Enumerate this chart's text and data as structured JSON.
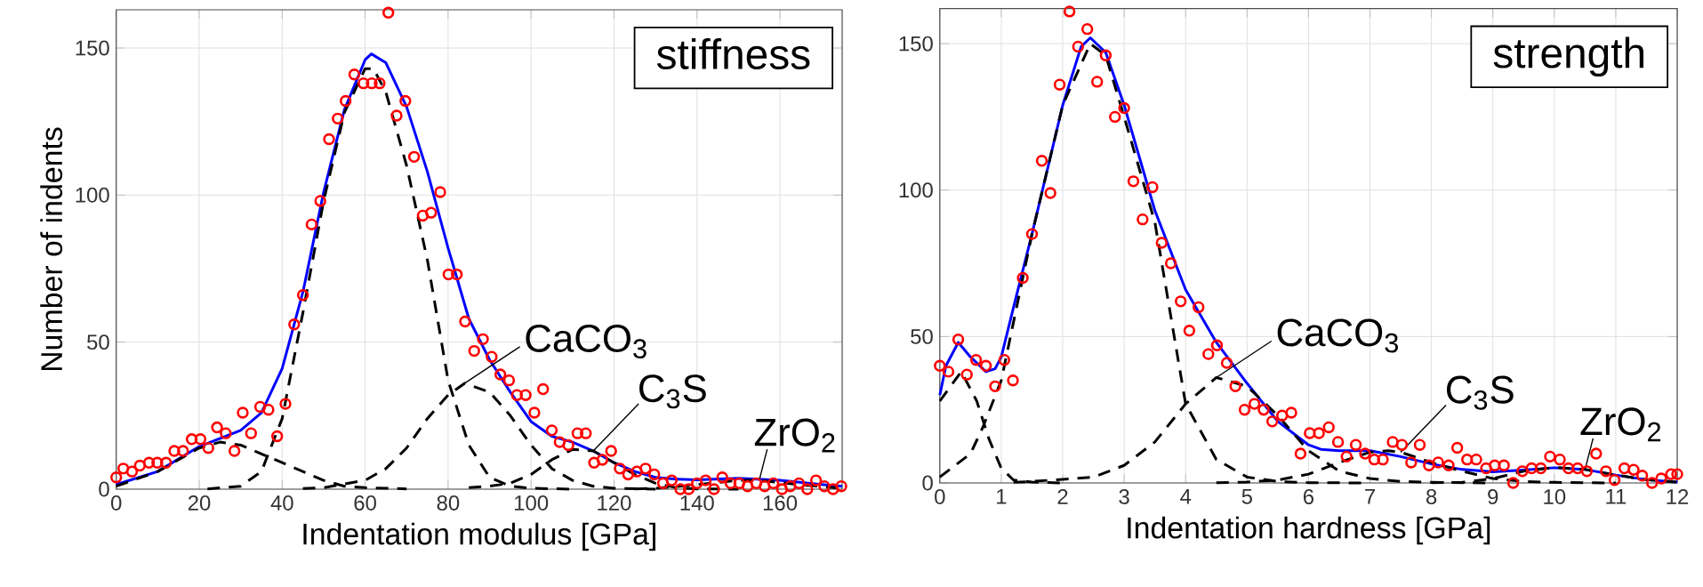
{
  "chart_data": [
    {
      "type": "scatter",
      "xlabel": "Indentation modulus [GPa]",
      "ylabel": "Number of indents",
      "xlim": [
        0,
        175
      ],
      "ylim": [
        0,
        163
      ],
      "xticks": [
        0,
        20,
        40,
        60,
        80,
        100,
        120,
        140,
        160
      ],
      "yticks": [
        0,
        50,
        100,
        150
      ],
      "grid": true,
      "annotations": [
        "stiffness",
        {
          "text": "CaCO$_{3}$",
          "x": 84,
          "y": 36
        },
        {
          "text": "C$_{3}$S",
          "x": 115,
          "y": 13
        },
        {
          "text": "ZrO$_{2}$",
          "x": 155,
          "y": 3
        }
      ],
      "series": [
        {
          "color": "#ff0000",
          "marker": "circle",
          "x": [
            0,
            1.7,
            3.8,
            5.7,
            7.9,
            9.9,
            12,
            14,
            16.1,
            18.2,
            20.3,
            22.2,
            24.3,
            26.4,
            28.5,
            30.5,
            32.5,
            34.7,
            36.7,
            38.8,
            40.8,
            42.9,
            45,
            47.1,
            49.2,
            51.3,
            53.4,
            55.3,
            57.4,
            59.6,
            61.6,
            63.5,
            65.6,
            67.6,
            69.7,
            71.8,
            73.9,
            75.9,
            78.1,
            80.1,
            82.1,
            84.1,
            86.3,
            88.4,
            90.5,
            92.6,
            94.7,
            96.6,
            98.7,
            100.8,
            102.9,
            105,
            106.9,
            109,
            111.2,
            113.2,
            115.2,
            117.2,
            119.3,
            121.4,
            123.4,
            125.5,
            127.6,
            129.7,
            131.8,
            133.9,
            136,
            138,
            140,
            142.1,
            144.1,
            146.1,
            148.1,
            150.2,
            152.2,
            154.3,
            156.3,
            158.4,
            160.5,
            162.5,
            164.6,
            166.6,
            168.7,
            170.7,
            172.8,
            174.8
          ],
          "values": [
            4,
            7,
            6,
            8,
            9,
            9,
            9,
            13,
            13,
            17,
            17,
            14,
            21,
            19,
            13,
            26,
            19,
            28,
            27,
            18,
            29,
            56,
            66,
            90,
            98,
            119,
            126,
            132,
            141,
            138,
            138,
            138,
            162,
            127,
            132,
            113,
            93,
            94,
            101,
            73,
            73,
            57,
            47,
            51,
            45,
            39,
            37,
            32,
            32,
            26,
            34,
            20,
            16,
            15,
            19,
            19,
            9,
            10,
            13,
            7,
            5,
            6,
            7,
            5,
            2,
            3,
            0,
            0,
            2,
            3,
            0,
            4,
            2,
            2,
            1,
            2,
            1,
            2,
            0,
            1,
            2,
            0,
            3,
            1,
            0,
            1
          ]
        },
        {
          "type": "line",
          "color": "#0000ff",
          "x": [
            0,
            10,
            20,
            30,
            35,
            40,
            45,
            50,
            55,
            60,
            61.5,
            65,
            70,
            75,
            80,
            85,
            90,
            95,
            100,
            105,
            110,
            115,
            120,
            125,
            130,
            135,
            140,
            150,
            160,
            170,
            175
          ],
          "values": [
            1.6,
            6,
            14.5,
            20,
            26,
            41,
            67,
            101,
            129,
            146,
            148,
            145,
            130,
            108,
            82,
            58,
            44,
            33,
            23,
            18,
            16,
            13,
            9,
            6,
            4,
            3.4,
            3.2,
            3.7,
            3,
            1.6,
            1
          ]
        },
        {
          "type": "line",
          "color": "#000000",
          "line_style": "dashed",
          "x": [
            0,
            10,
            20,
            25,
            30,
            40,
            50,
            55,
            60,
            70
          ],
          "values": [
            1,
            6,
            14,
            16,
            15,
            9,
            3,
            1,
            0.5,
            0.1
          ]
        },
        {
          "type": "line",
          "color": "#000000",
          "line_style": "dashed",
          "x": [
            22,
            30,
            35,
            40,
            45,
            50,
            55,
            60,
            62,
            65,
            70,
            75,
            80,
            85,
            90,
            95,
            100,
            110
          ],
          "values": [
            0.1,
            1,
            6,
            24,
            60,
            98,
            128,
            143,
            143,
            135,
            110,
            78,
            37,
            15,
            4,
            1,
            0.3,
            0
          ]
        },
        {
          "type": "line",
          "color": "#000000",
          "line_style": "dashed",
          "x": [
            45,
            50,
            60,
            65,
            70,
            75,
            80,
            84,
            90,
            95,
            100,
            105,
            110,
            115,
            120,
            130
          ],
          "values": [
            0.2,
            0.5,
            3,
            7,
            14,
            24,
            32,
            36,
            33,
            25,
            15,
            7,
            3,
            1,
            0.3,
            0
          ]
        },
        {
          "type": "line",
          "color": "#000000",
          "line_style": "dashed",
          "x": [
            85,
            90,
            95,
            100,
            105,
            110,
            115,
            120,
            125,
            130,
            135,
            140,
            150
          ],
          "values": [
            0.5,
            1,
            2,
            5,
            10,
            13.5,
            13,
            9,
            5,
            2,
            0.5,
            0.1,
            0
          ]
        },
        {
          "type": "line",
          "color": "#000000",
          "line_style": "dashed",
          "x": [
            125,
            130,
            140,
            150,
            155,
            165,
            175
          ],
          "values": [
            0.1,
            0.3,
            1.5,
            3,
            3,
            1.5,
            0.3
          ]
        }
      ]
    },
    {
      "type": "scatter",
      "xlabel": "Indentation hardness [GPa]",
      "xlim": [
        0,
        12
      ],
      "ylim": [
        0,
        162
      ],
      "xticks": [
        0,
        1,
        2,
        3,
        4,
        5,
        6,
        7,
        8,
        9,
        10,
        11,
        12
      ],
      "yticks": [
        0,
        50,
        100,
        150
      ],
      "grid": true,
      "annotations": [
        "strength",
        {
          "text": "CaCO$_{3}$",
          "x": 4.5,
          "y": 36
        },
        {
          "text": "C$_{3}$S",
          "x": 7.5,
          "y": 10.5
        },
        {
          "text": "ZrO$_{2}$",
          "x": 10.5,
          "y": 4.6
        }
      ],
      "series": [
        {
          "color": "#ff0000",
          "marker": "circle",
          "x": [
            0,
            0.14,
            0.3,
            0.44,
            0.59,
            0.75,
            0.9,
            1.05,
            1.19,
            1.35,
            1.5,
            1.66,
            1.8,
            1.95,
            2.11,
            2.25,
            2.4,
            2.56,
            2.7,
            2.85,
            3,
            3.15,
            3.3,
            3.46,
            3.61,
            3.76,
            3.92,
            4.06,
            4.21,
            4.37,
            4.51,
            4.67,
            4.81,
            4.96,
            5.12,
            5.27,
            5.41,
            5.57,
            5.72,
            5.87,
            6.02,
            6.17,
            6.33,
            6.48,
            6.62,
            6.77,
            6.92,
            7.07,
            7.21,
            7.37,
            7.52,
            7.67,
            7.81,
            7.96,
            8.11,
            8.28,
            8.42,
            8.58,
            8.73,
            8.89,
            9.03,
            9.18,
            9.33,
            9.48,
            9.63,
            9.78,
            9.93,
            10.09,
            10.23,
            10.38,
            10.53,
            10.68,
            10.84,
            10.98,
            11.14,
            11.29,
            11.43,
            11.59,
            11.74,
            11.9,
            12
          ],
          "values": [
            40,
            38,
            49,
            37,
            42,
            40,
            33,
            42,
            35,
            70,
            85,
            110,
            99,
            136,
            161,
            149,
            155,
            137,
            146,
            125,
            128,
            103,
            90,
            101,
            82,
            75,
            62,
            52,
            60,
            44,
            47,
            41,
            33,
            25,
            27,
            25,
            21,
            23,
            24,
            10,
            17,
            17,
            19,
            14,
            9,
            13,
            10,
            8,
            8,
            14,
            13,
            7,
            13,
            6,
            7,
            6,
            12,
            8,
            8,
            5,
            6,
            6,
            0,
            4,
            5,
            5,
            9,
            8,
            5,
            5,
            4,
            10,
            4,
            1,
            5,
            4.5,
            2.5,
            0,
            1.5,
            3,
            3
          ]
        },
        {
          "type": "line",
          "color": "#0000ff",
          "x": [
            0,
            0.1,
            0.3,
            0.5,
            0.75,
            0.9,
            1,
            1.2,
            1.5,
            2,
            2.3,
            2.45,
            2.7,
            3,
            3.5,
            4,
            4.5,
            5,
            5.5,
            6,
            6.2,
            6.5,
            7,
            7.5,
            8,
            8.5,
            9,
            9.5,
            10,
            10.5,
            11,
            11.5,
            12
          ],
          "values": [
            30,
            40,
            48,
            43,
            38,
            39,
            43,
            60,
            85,
            129,
            149,
            152,
            147,
            129,
            93,
            66,
            48,
            34,
            21,
            13,
            11.5,
            11,
            11,
            9,
            6.5,
            4.6,
            3.8,
            4.4,
            5.2,
            4.6,
            2.7,
            1.1,
            0.3
          ]
        },
        {
          "type": "line",
          "color": "#000000",
          "line_style": "dashed",
          "x": [
            0,
            0.35,
            0.6,
            0.8,
            1,
            1.2,
            1.5,
            2
          ],
          "values": [
            28,
            38,
            28,
            15,
            5,
            1,
            0.3,
            0
          ]
        },
        {
          "type": "line",
          "color": "#000000",
          "line_style": "dashed",
          "x": [
            0,
            0.5,
            0.7,
            1,
            1.2,
            1.5,
            2,
            2.45,
            2.7,
            3,
            3.5,
            4,
            4.5,
            5,
            5.5,
            6,
            7
          ],
          "values": [
            2,
            10,
            19,
            35,
            55,
            85,
            129,
            150,
            146,
            125,
            89,
            27,
            8,
            2,
            0.5,
            0.1,
            0
          ]
        },
        {
          "type": "line",
          "color": "#000000",
          "line_style": "dashed",
          "x": [
            1.2,
            1.5,
            2.5,
            3,
            3.5,
            4,
            4.5,
            5,
            5.5,
            6,
            6.5,
            7,
            7.5,
            8,
            9
          ],
          "values": [
            0.2,
            0.5,
            2,
            6,
            14,
            27,
            36,
            33,
            23,
            11,
            4,
            1.5,
            0.5,
            0.2,
            0
          ]
        },
        {
          "type": "line",
          "color": "#000000",
          "line_style": "dashed",
          "x": [
            4.5,
            5,
            5.5,
            6,
            6.5,
            7,
            7.3,
            7.5,
            8,
            8.5,
            9,
            9.5,
            10,
            11
          ],
          "values": [
            0.1,
            0.3,
            1,
            3,
            7,
            10.5,
            11,
            10.5,
            7,
            4,
            1.5,
            0.5,
            0.2,
            0
          ]
        },
        {
          "type": "line",
          "color": "#000000",
          "line_style": "dashed",
          "x": [
            8,
            8.5,
            9,
            9.5,
            10,
            10.5,
            11,
            11.5,
            12
          ],
          "values": [
            0.1,
            0.2,
            1.5,
            4,
            5.3,
            4.6,
            2.7,
            1.1,
            0.3
          ]
        }
      ]
    }
  ]
}
